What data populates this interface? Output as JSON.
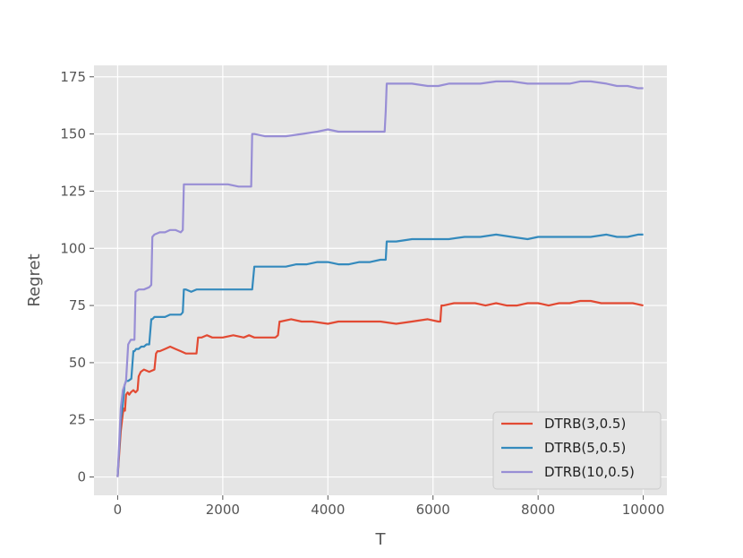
{
  "chart_data": {
    "type": "line",
    "title": "",
    "xlabel": "T",
    "ylabel": "Regret",
    "xlim": [
      -450,
      10450
    ],
    "ylim": [
      -8,
      180
    ],
    "xticks": [
      0,
      2000,
      4000,
      6000,
      8000,
      10000
    ],
    "yticks": [
      0,
      25,
      50,
      75,
      100,
      125,
      150,
      175
    ],
    "grid": true,
    "legend_position": "lower-right",
    "background": "#e5e5e5",
    "series": [
      {
        "name": "DTRB(3,0.5)",
        "color": "#e24a33",
        "x": [
          0,
          60,
          100,
          120,
          140,
          160,
          190,
          220,
          250,
          300,
          340,
          380,
          400,
          420,
          440,
          500,
          600,
          700,
          730,
          760,
          800,
          900,
          1000,
          1100,
          1200,
          1300,
          1400,
          1500,
          1530,
          1560,
          1600,
          1700,
          1800,
          2000,
          2200,
          2400,
          2500,
          2600,
          2800,
          3000,
          3050,
          3080,
          3100,
          3300,
          3500,
          3700,
          4000,
          4200,
          4500,
          4800,
          5000,
          5300,
          5600,
          5900,
          6100,
          6140,
          6160,
          6200,
          6400,
          6600,
          6800,
          7000,
          7200,
          7400,
          7600,
          7800,
          8000,
          8200,
          8400,
          8600,
          8800,
          9000,
          9200,
          9400,
          9600,
          9800,
          10000
        ],
        "values": [
          0,
          20,
          28,
          30,
          29,
          36,
          37,
          36,
          37,
          38,
          37,
          38,
          44,
          45,
          46,
          47,
          46,
          47,
          54,
          55,
          55,
          56,
          57,
          56,
          55,
          54,
          54,
          54,
          61,
          61,
          61,
          62,
          61,
          61,
          62,
          61,
          62,
          61,
          61,
          61,
          62,
          68,
          68,
          69,
          68,
          68,
          67,
          68,
          68,
          68,
          68,
          67,
          68,
          69,
          68,
          68,
          75,
          75,
          76,
          76,
          76,
          75,
          76,
          75,
          75,
          76,
          76,
          75,
          76,
          76,
          77,
          77,
          76,
          76,
          76,
          76,
          75
        ]
      },
      {
        "name": "DTRB(5,0.5)",
        "color": "#348abd",
        "x": [
          0,
          60,
          100,
          130,
          160,
          200,
          260,
          300,
          320,
          350,
          400,
          450,
          500,
          550,
          600,
          640,
          660,
          700,
          800,
          900,
          1000,
          1100,
          1200,
          1240,
          1260,
          1300,
          1400,
          1500,
          1700,
          1900,
          2100,
          2300,
          2500,
          2560,
          2600,
          2800,
          3000,
          3200,
          3400,
          3600,
          3800,
          4000,
          4200,
          4400,
          4600,
          4800,
          5000,
          5100,
          5120,
          5300,
          5600,
          5900,
          6100,
          6300,
          6600,
          6900,
          7200,
          7500,
          7800,
          8000,
          8300,
          8600,
          8800,
          9000,
          9300,
          9500,
          9700,
          9900,
          10000
        ],
        "values": [
          0,
          25,
          32,
          40,
          42,
          42,
          43,
          55,
          55,
          56,
          56,
          57,
          57,
          58,
          58,
          69,
          69,
          70,
          70,
          70,
          71,
          71,
          71,
          72,
          82,
          82,
          81,
          82,
          82,
          82,
          82,
          82,
          82,
          82,
          92,
          92,
          92,
          92,
          93,
          93,
          94,
          94,
          93,
          93,
          94,
          94,
          95,
          95,
          103,
          103,
          104,
          104,
          104,
          104,
          105,
          105,
          106,
          105,
          104,
          105,
          105,
          105,
          105,
          105,
          106,
          105,
          105,
          106,
          106
        ]
      },
      {
        "name": "DTRB(10,0.5)",
        "color": "#988ed5",
        "x": [
          0,
          60,
          100,
          130,
          160,
          200,
          250,
          280,
          320,
          340,
          400,
          500,
          600,
          640,
          660,
          700,
          800,
          900,
          1000,
          1100,
          1200,
          1240,
          1260,
          1300,
          1500,
          1700,
          1900,
          2100,
          2300,
          2400,
          2540,
          2560,
          2600,
          2800,
          3000,
          3200,
          3500,
          3800,
          4000,
          4200,
          4500,
          4800,
          5000,
          5080,
          5100,
          5120,
          5300,
          5600,
          5900,
          6100,
          6300,
          6600,
          6900,
          7200,
          7500,
          7800,
          8000,
          8300,
          8600,
          8800,
          9000,
          9300,
          9500,
          9700,
          9900,
          10000
        ],
        "values": [
          0,
          30,
          38,
          40,
          42,
          58,
          60,
          60,
          60,
          81,
          82,
          82,
          83,
          84,
          105,
          106,
          107,
          107,
          108,
          108,
          107,
          108,
          128,
          128,
          128,
          128,
          128,
          128,
          127,
          127,
          127,
          150,
          150,
          149,
          149,
          149,
          150,
          151,
          152,
          151,
          151,
          151,
          151,
          151,
          160,
          172,
          172,
          172,
          171,
          171,
          172,
          172,
          172,
          173,
          173,
          172,
          172,
          172,
          172,
          173,
          173,
          172,
          171,
          171,
          170,
          170
        ]
      }
    ]
  }
}
